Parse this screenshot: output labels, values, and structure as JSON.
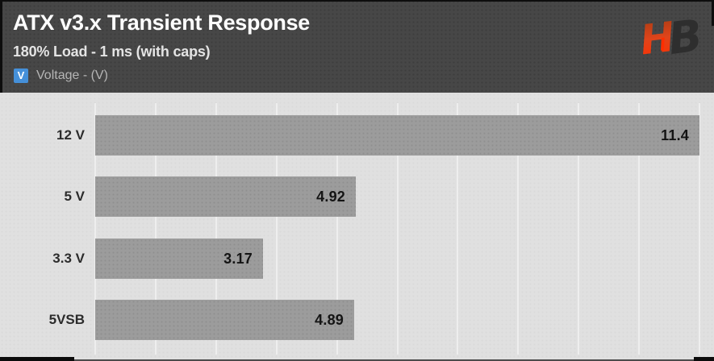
{
  "header": {
    "title": "ATX v3.x Transient Response",
    "subtitle": "180% Load - 1 ms (with caps)",
    "legend": {
      "swatch_letter": "V",
      "label": "Voltage - (V)",
      "swatch_color": "#4590d9"
    },
    "logo": {
      "letters": [
        "H",
        "B"
      ],
      "name": "hardware-busters-logo"
    }
  },
  "colors": {
    "header_bg": "#474747",
    "chart_bg": "#e0e0e0",
    "bar": "#9c9c9c",
    "gridline": "#eeeeee",
    "title_text": "#ffffff",
    "subtitle_text": "#e4e4e4",
    "legend_text": "#b5b5b5",
    "category_text": "#2b2b2b",
    "value_text": "#141414",
    "legend_swatch": "#4590d9",
    "logo_red_top": "#a63c14",
    "logo_red_bottom": "#ff2e00",
    "logo_dark": "#2e2e2e"
  },
  "chart_data": {
    "type": "bar",
    "orientation": "horizontal",
    "title": "ATX v3.x Transient Response",
    "subtitle": "180% Load - 1 ms (with caps)",
    "series_name": "Voltage - (V)",
    "categories": [
      "12 V",
      "5 V",
      "3.3 V",
      "5VSB"
    ],
    "values": [
      11.4,
      4.92,
      3.17,
      4.89
    ],
    "value_labels": [
      "11.4",
      "4.92",
      "3.17",
      "4.89"
    ],
    "xlabel": "",
    "ylabel": "",
    "xlim": [
      0,
      11.4
    ],
    "gridline_intervals": 10,
    "grid": true,
    "legend_position": "top-left",
    "bar_color": "#9c9c9c",
    "value_label_position": "inside-end"
  }
}
